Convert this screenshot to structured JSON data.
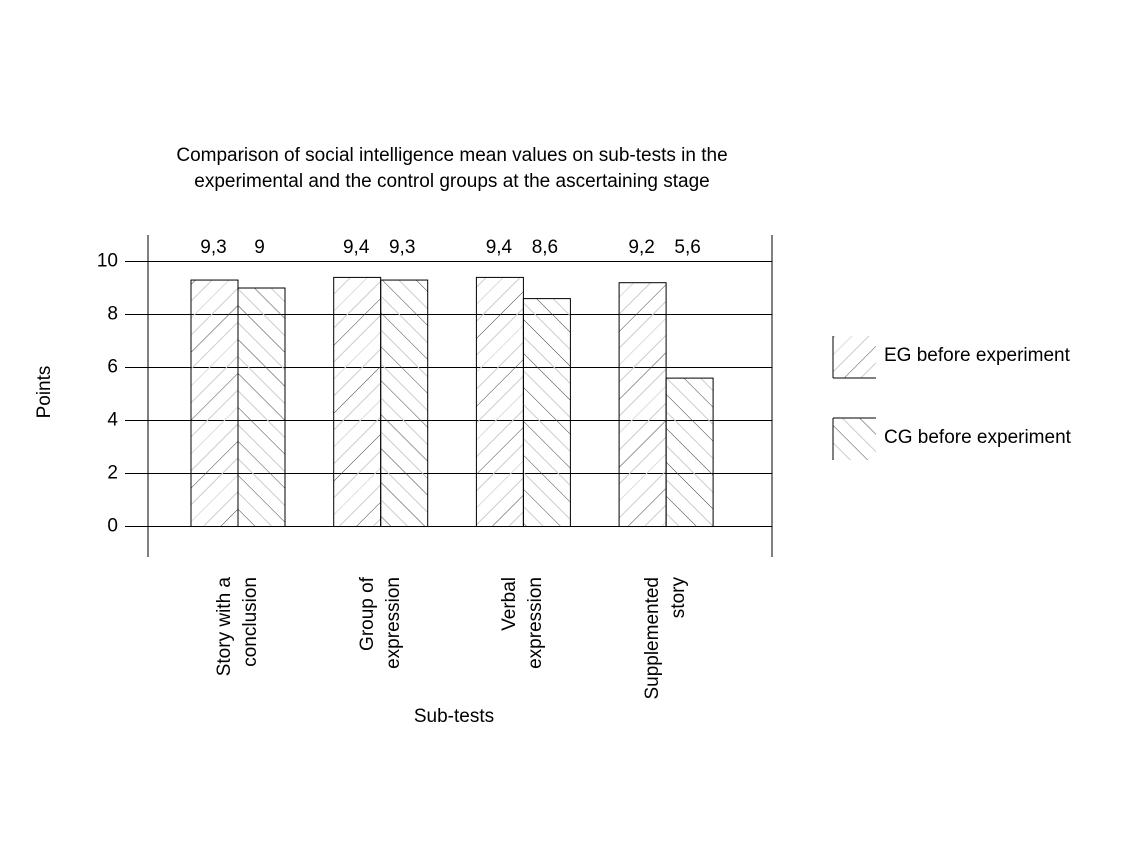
{
  "chart_data": {
    "type": "bar",
    "title": "Comparison of social intelligence mean values on sub-tests in the\nexperimental and the control groups at the ascertaining stage",
    "x_label": "Sub-tests",
    "y_label": "Points",
    "categories": [
      "Story with a\nconclusion",
      "Group of\nexpression",
      "Verbal\nexpression",
      "Supplemented\nstory"
    ],
    "series": [
      {
        "name": "EG before experiment",
        "color": "#444444",
        "values": [
          9.3,
          9.4,
          9.4,
          9.2
        ],
        "value_labels": [
          "9,3",
          "9,4",
          "9,4",
          "9,2"
        ]
      },
      {
        "name": "CG before experiment",
        "color": "#444444",
        "values": [
          9,
          9.3,
          8.6,
          5.6
        ],
        "value_labels": [
          "9",
          "9,3",
          "8,6",
          "5,6"
        ]
      }
    ],
    "ylim": [
      -1.15,
      11
    ],
    "yticks": [
      0,
      2,
      4,
      6,
      8,
      10
    ],
    "grid": true,
    "legend": "right"
  }
}
